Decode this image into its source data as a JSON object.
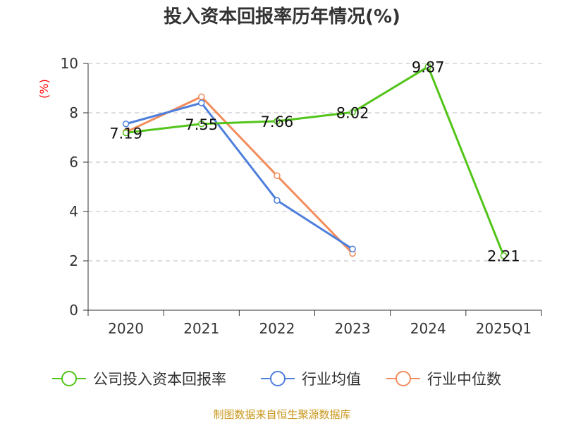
{
  "chart_data": {
    "type": "line",
    "title": "投入资本回报率历年情况(%)",
    "ylabel": "(%)",
    "xlabel": "",
    "categories": [
      "2020",
      "2021",
      "2022",
      "2023",
      "2024",
      "2025Q1"
    ],
    "ylim": [
      0,
      10
    ],
    "yticks": [
      0,
      2,
      4,
      6,
      8,
      10
    ],
    "grid": true,
    "legend_position": "bottom",
    "series": [
      {
        "name": "公司投入资本回报率",
        "color": "#52c41a",
        "values": [
          7.19,
          7.55,
          7.66,
          8.02,
          9.87,
          2.21
        ],
        "labels": [
          "7.19",
          "7.55",
          "7.66",
          "8.02",
          "9.87",
          "2.21"
        ]
      },
      {
        "name": "行业均值",
        "color": "#4e7fdc",
        "values": [
          7.55,
          8.4,
          4.45,
          2.48,
          null,
          null
        ]
      },
      {
        "name": "行业中位数",
        "color": "#f28c5c",
        "values": [
          7.22,
          8.65,
          5.45,
          2.3,
          null,
          null
        ]
      }
    ],
    "source": "制图数据来自恒生聚源数据库"
  }
}
